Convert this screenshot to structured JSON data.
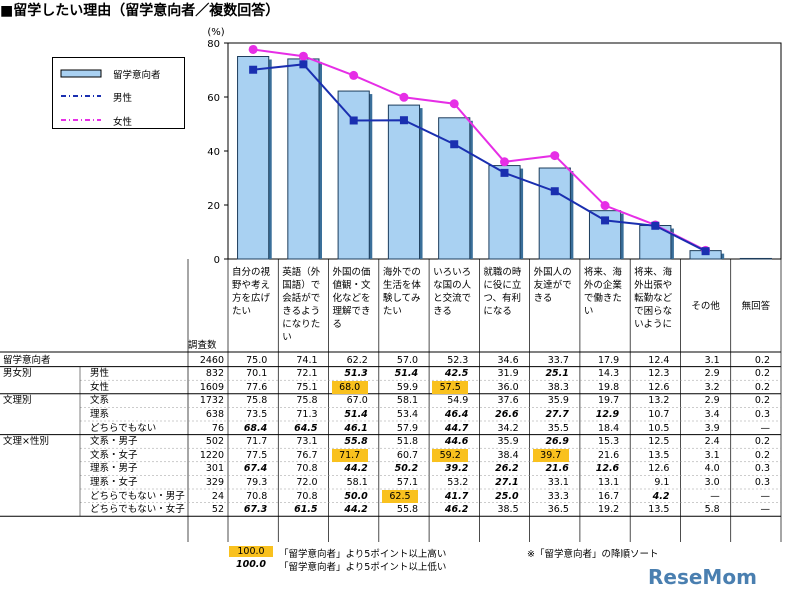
{
  "title": "■留学したい理由（留学意向者／複数回答）",
  "chart_data": {
    "type": "bar",
    "y_unit": "(%)",
    "ylim": [
      0,
      80
    ],
    "yticks": [
      0,
      20,
      40,
      60,
      80
    ],
    "categories": [
      "自分の視\n野や考え\n方を広げ\nたい",
      "英語（外\n国語）で\n会話がで\nきるよう\nになりた\nい",
      "外国の価\n値観・文\n化などを\n理解でき\nる",
      "海外での\n生活を体\n験してみ\nたい",
      "いろいろ\nな国の人\nと交流で\nきる",
      "就職の時\nに役に立\nつ、有利\nになる",
      "外国人の\n友達がで\nきる",
      "将来、海\n外の企業\nで働きた\nい",
      "将来、海\n外出張や\n転勤など\nで困らな\nいように",
      "その他",
      "無回答"
    ],
    "series": [
      {
        "name": "留学意向者",
        "kind": "bar",
        "color": "#a9d1f2",
        "values": [
          75.0,
          74.1,
          62.2,
          57.0,
          52.3,
          34.6,
          33.7,
          17.9,
          12.4,
          3.1,
          0.2
        ]
      },
      {
        "name": "男性",
        "kind": "line",
        "color": "#1a2fb0",
        "values": [
          70.1,
          72.1,
          51.3,
          51.4,
          42.5,
          31.9,
          25.1,
          14.3,
          12.3,
          2.9,
          0.2
        ]
      },
      {
        "name": "女性",
        "kind": "line",
        "color": "#e62ee6",
        "values": [
          77.6,
          75.1,
          68.0,
          59.9,
          57.5,
          36.0,
          38.3,
          19.8,
          12.6,
          3.2,
          0.2
        ]
      }
    ],
    "table_header_n": "調査数",
    "table_rows": [
      {
        "group": "留学意向者",
        "sub": "",
        "n": "2460",
        "values": [
          "75.0",
          "74.1",
          "62.2",
          "57.0",
          "52.3",
          "34.6",
          "33.7",
          "17.9",
          "12.4",
          "3.1",
          "0.2"
        ],
        "fmt": [
          "",
          "",
          "",
          "",
          "",
          "",
          "",
          "",
          "",
          "",
          ""
        ]
      },
      {
        "group": "男女別",
        "sub": "男性",
        "n": "832",
        "values": [
          "70.1",
          "72.1",
          "51.3",
          "51.4",
          "42.5",
          "31.9",
          "25.1",
          "14.3",
          "12.3",
          "2.9",
          "0.2"
        ],
        "fmt": [
          "",
          "",
          "lo",
          "lo",
          "lo",
          "",
          "lo",
          "",
          "",
          "",
          ""
        ]
      },
      {
        "group": "",
        "sub": "女性",
        "n": "1609",
        "values": [
          "77.6",
          "75.1",
          "68.0",
          "59.9",
          "57.5",
          "36.0",
          "38.3",
          "19.8",
          "12.6",
          "3.2",
          "0.2"
        ],
        "fmt": [
          "",
          "",
          "hl",
          "",
          "hl",
          "",
          "",
          "",
          "",
          "",
          ""
        ]
      },
      {
        "group": "文理別",
        "sub": "文系",
        "n": "1732",
        "values": [
          "75.8",
          "75.8",
          "67.0",
          "58.1",
          "54.9",
          "37.6",
          "35.9",
          "19.7",
          "13.2",
          "2.9",
          "0.2"
        ],
        "fmt": [
          "",
          "",
          "",
          "",
          "",
          "",
          "",
          "",
          "",
          "",
          ""
        ]
      },
      {
        "group": "",
        "sub": "理系",
        "n": "638",
        "values": [
          "73.5",
          "71.3",
          "51.4",
          "53.4",
          "46.4",
          "26.6",
          "27.7",
          "12.9",
          "10.7",
          "3.4",
          "0.3"
        ],
        "fmt": [
          "",
          "",
          "lo",
          "",
          "lo",
          "lo",
          "lo",
          "lo",
          "",
          "",
          ""
        ]
      },
      {
        "group": "",
        "sub": "どちらでもない",
        "n": "76",
        "values": [
          "68.4",
          "64.5",
          "46.1",
          "57.9",
          "44.7",
          "34.2",
          "35.5",
          "18.4",
          "10.5",
          "3.9",
          "—"
        ],
        "fmt": [
          "lo",
          "lo",
          "lo",
          "",
          "lo",
          "",
          "",
          "",
          "",
          "",
          ""
        ]
      },
      {
        "group": "文理×性別",
        "sub": "文系・男子",
        "n": "502",
        "values": [
          "71.7",
          "73.1",
          "55.8",
          "51.8",
          "44.6",
          "35.9",
          "26.9",
          "15.3",
          "12.5",
          "2.4",
          "0.2"
        ],
        "fmt": [
          "",
          "",
          "lo",
          "",
          "lo",
          "",
          "lo",
          "",
          "",
          "",
          ""
        ]
      },
      {
        "group": "",
        "sub": "文系・女子",
        "n": "1220",
        "values": [
          "77.5",
          "76.7",
          "71.7",
          "60.7",
          "59.2",
          "38.4",
          "39.7",
          "21.6",
          "13.5",
          "3.1",
          "0.2"
        ],
        "fmt": [
          "",
          "",
          "hl",
          "",
          "hl",
          "",
          "hl",
          "",
          "",
          "",
          ""
        ]
      },
      {
        "group": "",
        "sub": "理系・男子",
        "n": "301",
        "values": [
          "67.4",
          "70.8",
          "44.2",
          "50.2",
          "39.2",
          "26.2",
          "21.6",
          "12.6",
          "12.6",
          "4.0",
          "0.3"
        ],
        "fmt": [
          "lo",
          "",
          "lo",
          "lo",
          "lo",
          "lo",
          "lo",
          "lo",
          "",
          "",
          ""
        ]
      },
      {
        "group": "",
        "sub": "理系・女子",
        "n": "329",
        "values": [
          "79.3",
          "72.0",
          "58.1",
          "57.1",
          "53.2",
          "27.1",
          "33.1",
          "13.1",
          "9.1",
          "3.0",
          "0.3"
        ],
        "fmt": [
          "",
          "",
          "",
          "",
          "",
          "lo",
          "",
          "",
          "",
          "",
          ""
        ]
      },
      {
        "group": "",
        "sub": "どちらでもない・男子",
        "n": "24",
        "values": [
          "70.8",
          "70.8",
          "50.0",
          "62.5",
          "41.7",
          "25.0",
          "33.3",
          "16.7",
          "4.2",
          "—",
          "—"
        ],
        "fmt": [
          "",
          "",
          "lo",
          "hl",
          "lo",
          "lo",
          "",
          "",
          "lo",
          "",
          ""
        ]
      },
      {
        "group": "",
        "sub": "どちらでもない・女子",
        "n": "52",
        "values": [
          "67.3",
          "61.5",
          "44.2",
          "55.8",
          "46.2",
          "38.5",
          "36.5",
          "19.2",
          "13.5",
          "5.8",
          "—"
        ],
        "fmt": [
          "lo",
          "lo",
          "lo",
          "",
          "lo",
          "",
          "",
          "",
          "",
          "",
          ""
        ]
      }
    ]
  },
  "footnotes": {
    "hl_sample": "100.0",
    "hl_text": "「留学意向者」より5ポイント以上高い",
    "lo_sample": "100.0",
    "lo_text": "「留学意向者」より5ポイント以上低い",
    "sort_note": "※「留学意向者」の降順ソート"
  },
  "watermark": "ReseMom"
}
